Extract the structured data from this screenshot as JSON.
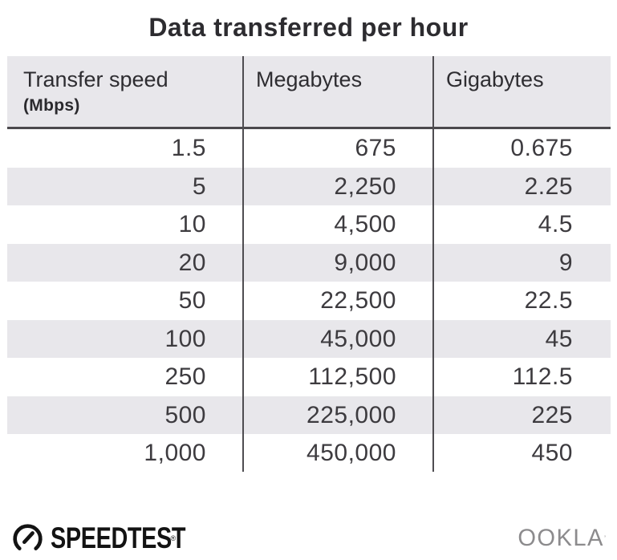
{
  "title": "Data transferred per hour",
  "table": {
    "columns": [
      {
        "label": "Transfer speed",
        "sublabel": "(Mbps)"
      },
      {
        "label": "Megabytes"
      },
      {
        "label": "Gigabytes"
      }
    ],
    "rows": [
      [
        "1.5",
        "675",
        "0.675"
      ],
      [
        "5",
        "2,250",
        "2.25"
      ],
      [
        "10",
        "4,500",
        "4.5"
      ],
      [
        "20",
        "9,000",
        "9"
      ],
      [
        "50",
        "22,500",
        "22.5"
      ],
      [
        "100",
        "45,000",
        "45"
      ],
      [
        "250",
        "112,500",
        "112.5"
      ],
      [
        "500",
        "225,000",
        "225"
      ],
      [
        "1,000",
        "450,000",
        "450"
      ]
    ]
  },
  "footer": {
    "brand": "SPEEDTEST",
    "brand_mark": "®",
    "company": "OOKLA",
    "company_mark": "’"
  },
  "colors": {
    "header_bg": "#e8e7eb",
    "stripe_bg": "#e8e7eb",
    "rule": "#4b494d",
    "title_text": "#2d2c30",
    "cell_text": "#3d3b3f",
    "ookla_gray": "#8c8b8d",
    "speedtest_black": "#131313"
  },
  "chart_data": {
    "type": "table",
    "title": "Data transferred per hour",
    "columns": [
      "Transfer speed (Mbps)",
      "Megabytes",
      "Gigabytes"
    ],
    "rows": [
      [
        1.5,
        675,
        0.675
      ],
      [
        5,
        2250,
        2.25
      ],
      [
        10,
        4500,
        4.5
      ],
      [
        20,
        9000,
        9
      ],
      [
        50,
        22500,
        22.5
      ],
      [
        100,
        45000,
        45
      ],
      [
        250,
        112500,
        112.5
      ],
      [
        500,
        225000,
        225
      ],
      [
        1000,
        450000,
        450
      ]
    ],
    "notes": "Rows alternate white and light gray striping; values right-aligned"
  }
}
